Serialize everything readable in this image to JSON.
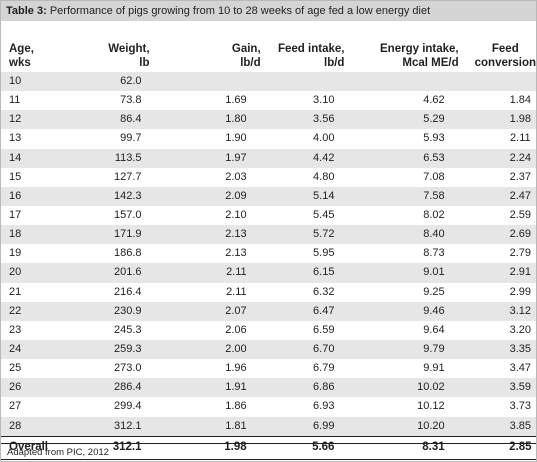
{
  "title": {
    "label": "Table 3:",
    "text": " Performance of pigs growing from 10 to 28 weeks of age fed a low energy diet"
  },
  "headers": [
    [
      "Age,",
      "wks"
    ],
    [
      "Weight,",
      "lb"
    ],
    [
      "Gain,",
      "lb/d"
    ],
    [
      "Feed intake,",
      "lb/d"
    ],
    [
      "Energy intake,",
      "Mcal ME/d"
    ],
    [
      "Feed",
      "conversion"
    ]
  ],
  "rows": [
    [
      "10",
      "62.0",
      "",
      "",
      "",
      ""
    ],
    [
      "11",
      "73.8",
      "1.69",
      "3.10",
      "4.62",
      "1.84"
    ],
    [
      "12",
      "86.4",
      "1.80",
      "3.56",
      "5.29",
      "1.98"
    ],
    [
      "13",
      "99.7",
      "1.90",
      "4.00",
      "5.93",
      "2.11"
    ],
    [
      "14",
      "113.5",
      "1.97",
      "4.42",
      "6.53",
      "2.24"
    ],
    [
      "15",
      "127.7",
      "2.03",
      "4.80",
      "7.08",
      "2.37"
    ],
    [
      "16",
      "142.3",
      "2.09",
      "5.14",
      "7.58",
      "2.47"
    ],
    [
      "17",
      "157.0",
      "2.10",
      "5.45",
      "8.02",
      "2.59"
    ],
    [
      "18",
      "171.9",
      "2.13",
      "5.72",
      "8.40",
      "2.69"
    ],
    [
      "19",
      "186.8",
      "2.13",
      "5.95",
      "8.73",
      "2.79"
    ],
    [
      "20",
      "201.6",
      "2.11",
      "6.15",
      "9.01",
      "2.91"
    ],
    [
      "21",
      "216.4",
      "2.11",
      "6.32",
      "9.25",
      "2.99"
    ],
    [
      "22",
      "230.9",
      "2.07",
      "6.47",
      "9.46",
      "3.12"
    ],
    [
      "23",
      "245.3",
      "2.06",
      "6.59",
      "9.64",
      "3.20"
    ],
    [
      "24",
      "259.3",
      "2.00",
      "6.70",
      "9.79",
      "3.35"
    ],
    [
      "25",
      "273.0",
      "1.96",
      "6.79",
      "9.91",
      "3.47"
    ],
    [
      "26",
      "286.4",
      "1.91",
      "6.86",
      "10.02",
      "3.59"
    ],
    [
      "27",
      "299.4",
      "1.86",
      "6.93",
      "10.12",
      "3.73"
    ],
    [
      "28",
      "312.1",
      "1.81",
      "6.99",
      "10.20",
      "3.85"
    ]
  ],
  "overall": [
    "Overall",
    "312.1",
    "1.98",
    "5.66",
    "8.31",
    "2.85"
  ],
  "source": "Adapted from PIC, 2012"
}
